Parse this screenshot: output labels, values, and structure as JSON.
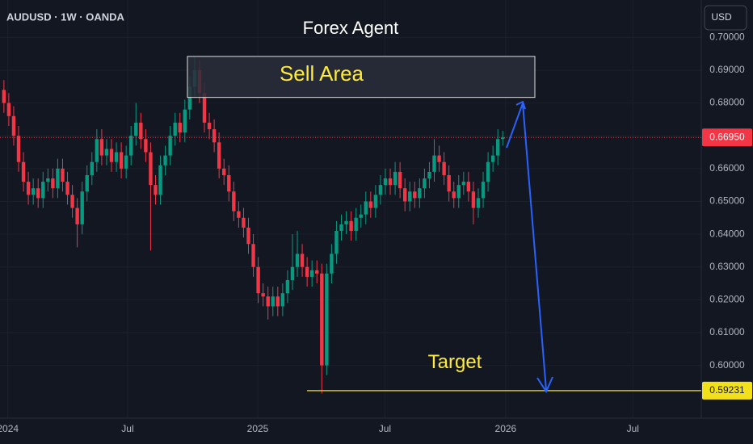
{
  "chart_data": {
    "type": "candlestick",
    "symbol": "AUDUSD · 1W · OANDA",
    "title": "Forex Agent",
    "currency": "USD",
    "up_color": "#089981",
    "down_color": "#f23645",
    "open": [
      0.684,
      0.68,
      0.676,
      0.67,
      0.662,
      0.656,
      0.652,
      0.654,
      0.651,
      0.656,
      0.657,
      0.654,
      0.66,
      0.656,
      0.652,
      0.648,
      0.643,
      0.653,
      0.658,
      0.662,
      0.669,
      0.664,
      0.666,
      0.662,
      0.665,
      0.66,
      0.664,
      0.67,
      0.674,
      0.669,
      0.665,
      0.655,
      0.652,
      0.661,
      0.664,
      0.67,
      0.674,
      0.671,
      0.678,
      0.685,
      0.69,
      0.683,
      0.674,
      0.672,
      0.668,
      0.66,
      0.658,
      0.653,
      0.647,
      0.645,
      0.642,
      0.637,
      0.63,
      0.622,
      0.621,
      0.618,
      0.621,
      0.618,
      0.622,
      0.626,
      0.63,
      0.634,
      0.63,
      0.627,
      0.629,
      0.628,
      0.6,
      0.628,
      0.634,
      0.641,
      0.643,
      0.644,
      0.641,
      0.645,
      0.646,
      0.65,
      0.648,
      0.652,
      0.655,
      0.657,
      0.655,
      0.659,
      0.654,
      0.65,
      0.653,
      0.651,
      0.654,
      0.657,
      0.659,
      0.664,
      0.662,
      0.658,
      0.653,
      0.651,
      0.655,
      0.656,
      0.653,
      0.648,
      0.651,
      0.656,
      0.662,
      0.664,
      0.669
    ],
    "high": [
      0.687,
      0.683,
      0.679,
      0.673,
      0.665,
      0.659,
      0.657,
      0.657,
      0.659,
      0.66,
      0.66,
      0.663,
      0.663,
      0.659,
      0.655,
      0.651,
      0.656,
      0.661,
      0.665,
      0.672,
      0.672,
      0.669,
      0.669,
      0.668,
      0.668,
      0.667,
      0.673,
      0.68,
      0.677,
      0.672,
      0.668,
      0.658,
      0.664,
      0.667,
      0.673,
      0.677,
      0.677,
      0.681,
      0.688,
      0.6942,
      0.693,
      0.686,
      0.677,
      0.675,
      0.671,
      0.663,
      0.661,
      0.656,
      0.65,
      0.648,
      0.645,
      0.64,
      0.633,
      0.625,
      0.624,
      0.624,
      0.624,
      0.625,
      0.629,
      0.64,
      0.641,
      0.637,
      0.633,
      0.632,
      0.632,
      0.631,
      0.631,
      0.637,
      0.644,
      0.646,
      0.647,
      0.647,
      0.648,
      0.649,
      0.653,
      0.653,
      0.655,
      0.658,
      0.66,
      0.66,
      0.662,
      0.662,
      0.657,
      0.656,
      0.656,
      0.657,
      0.66,
      0.662,
      0.669,
      0.667,
      0.665,
      0.661,
      0.656,
      0.658,
      0.659,
      0.659,
      0.656,
      0.654,
      0.659,
      0.665,
      0.667,
      0.672,
      0.6715
    ],
    "low": [
      0.677,
      0.673,
      0.667,
      0.659,
      0.653,
      0.649,
      0.649,
      0.648,
      0.648,
      0.653,
      0.651,
      0.651,
      0.653,
      0.649,
      0.645,
      0.636,
      0.64,
      0.65,
      0.655,
      0.659,
      0.661,
      0.661,
      0.659,
      0.659,
      0.657,
      0.657,
      0.661,
      0.667,
      0.666,
      0.662,
      0.635,
      0.649,
      0.649,
      0.658,
      0.661,
      0.667,
      0.668,
      0.668,
      0.675,
      0.682,
      0.68,
      0.671,
      0.669,
      0.665,
      0.657,
      0.655,
      0.65,
      0.644,
      0.642,
      0.639,
      0.634,
      0.627,
      0.619,
      0.618,
      0.614,
      0.615,
      0.615,
      0.615,
      0.619,
      0.623,
      0.627,
      0.627,
      0.624,
      0.624,
      0.625,
      0.5914,
      0.597,
      0.625,
      0.631,
      0.638,
      0.64,
      0.638,
      0.638,
      0.642,
      0.643,
      0.645,
      0.645,
      0.649,
      0.652,
      0.652,
      0.652,
      0.651,
      0.647,
      0.647,
      0.648,
      0.648,
      0.651,
      0.654,
      0.656,
      0.659,
      0.655,
      0.65,
      0.648,
      0.648,
      0.652,
      0.65,
      0.643,
      0.645,
      0.648,
      0.653,
      0.659,
      0.661,
      0.667
    ],
    "close": [
      0.68,
      0.676,
      0.67,
      0.662,
      0.656,
      0.652,
      0.654,
      0.651,
      0.656,
      0.657,
      0.654,
      0.66,
      0.656,
      0.652,
      0.648,
      0.643,
      0.653,
      0.658,
      0.662,
      0.669,
      0.664,
      0.666,
      0.662,
      0.665,
      0.66,
      0.664,
      0.67,
      0.674,
      0.669,
      0.665,
      0.655,
      0.652,
      0.661,
      0.664,
      0.67,
      0.674,
      0.671,
      0.678,
      0.685,
      0.69,
      0.683,
      0.674,
      0.672,
      0.668,
      0.66,
      0.658,
      0.653,
      0.647,
      0.645,
      0.642,
      0.637,
      0.63,
      0.622,
      0.621,
      0.618,
      0.621,
      0.618,
      0.622,
      0.626,
      0.63,
      0.634,
      0.63,
      0.627,
      0.629,
      0.628,
      0.6,
      0.628,
      0.634,
      0.641,
      0.643,
      0.644,
      0.641,
      0.645,
      0.646,
      0.65,
      0.648,
      0.652,
      0.655,
      0.657,
      0.655,
      0.659,
      0.654,
      0.65,
      0.653,
      0.651,
      0.654,
      0.657,
      0.659,
      0.664,
      0.662,
      0.658,
      0.653,
      0.651,
      0.655,
      0.656,
      0.653,
      0.648,
      0.651,
      0.656,
      0.662,
      0.664,
      0.669,
      0.6695
    ],
    "xlim": [
      -0.8,
      142.6
    ],
    "xticks": [
      {
        "value": 0.8,
        "label": "2024"
      },
      {
        "value": 25.3,
        "label": "Jul"
      },
      {
        "value": 51.9,
        "label": "2025"
      },
      {
        "value": 77.9,
        "label": "Jul"
      },
      {
        "value": 102.6,
        "label": "2026"
      },
      {
        "value": 128.6,
        "label": "Jul"
      }
    ],
    "ylim": [
      0.5839,
      0.7114
    ],
    "yticks": [
      {
        "value": 0.6,
        "label": "0.60000"
      },
      {
        "value": 0.61,
        "label": "0.61000"
      },
      {
        "value": 0.62,
        "label": "0.62000"
      },
      {
        "value": 0.63,
        "label": "0.63000"
      },
      {
        "value": 0.64,
        "label": "0.64000"
      },
      {
        "value": 0.65,
        "label": "0.65000"
      },
      {
        "value": 0.66,
        "label": "0.66000"
      },
      {
        "value": 0.67,
        "label": "0.67000"
      },
      {
        "value": 0.68,
        "label": "0.68000"
      },
      {
        "value": 0.69,
        "label": "0.69000"
      },
      {
        "value": 0.7,
        "label": "0.70000"
      }
    ],
    "last_price": {
      "value": 0.6695,
      "label": "0.66950"
    },
    "sell_area": {
      "label": "Sell Area",
      "range": [
        0.6817,
        0.6942
      ]
    },
    "target": {
      "label": "Target",
      "value": 0.59231
    }
  }
}
